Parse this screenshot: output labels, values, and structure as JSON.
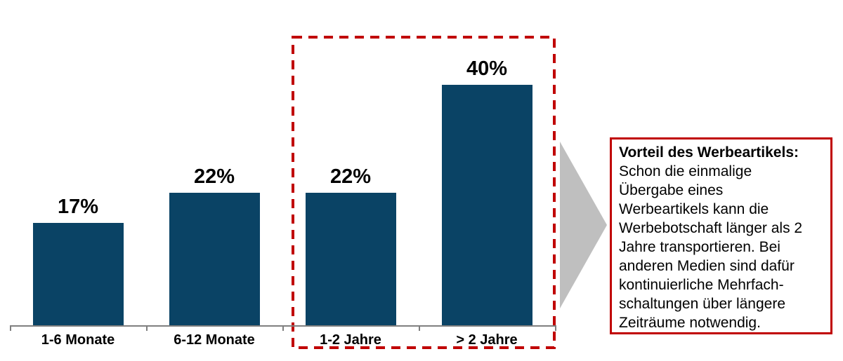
{
  "colors": {
    "bar": "#0a4365",
    "highlight_red": "#c00000",
    "box_border_red": "#c00000",
    "arrow_gray": "#bfbfbf",
    "axis_gray": "#7f7f7f",
    "text_black": "#000000",
    "background": "#ffffff"
  },
  "chart_data": {
    "type": "bar",
    "categories": [
      "1-6 Monate",
      "6-12 Monate",
      "1-2 Jahre",
      "> 2 Jahre"
    ],
    "values": [
      17,
      22,
      22,
      40
    ],
    "value_labels": [
      "17%",
      "22%",
      "22%",
      "40%"
    ],
    "title": "",
    "xlabel": "",
    "ylabel": "",
    "ylim": [
      0,
      45
    ],
    "grid": false,
    "legend": false,
    "highlighted_categories": [
      "1-2 Jahre",
      "> 2 Jahre"
    ],
    "highlight_style": "red dashed box around last two bars with gray arrow to annotation"
  },
  "annotation": {
    "heading": "Vorteil des Werbeartikels:",
    "body_lines": [
      "Schon die einmalige",
      "Übergabe eines",
      "Werbeartikels kann die",
      "Werbebotschaft länger als 2",
      "Jahre transportieren. Bei",
      "anderen Medien sind dafür",
      "kontinuierliche Mehrfach-",
      "schaltungen über längere",
      "Zeiträume notwendig."
    ]
  }
}
